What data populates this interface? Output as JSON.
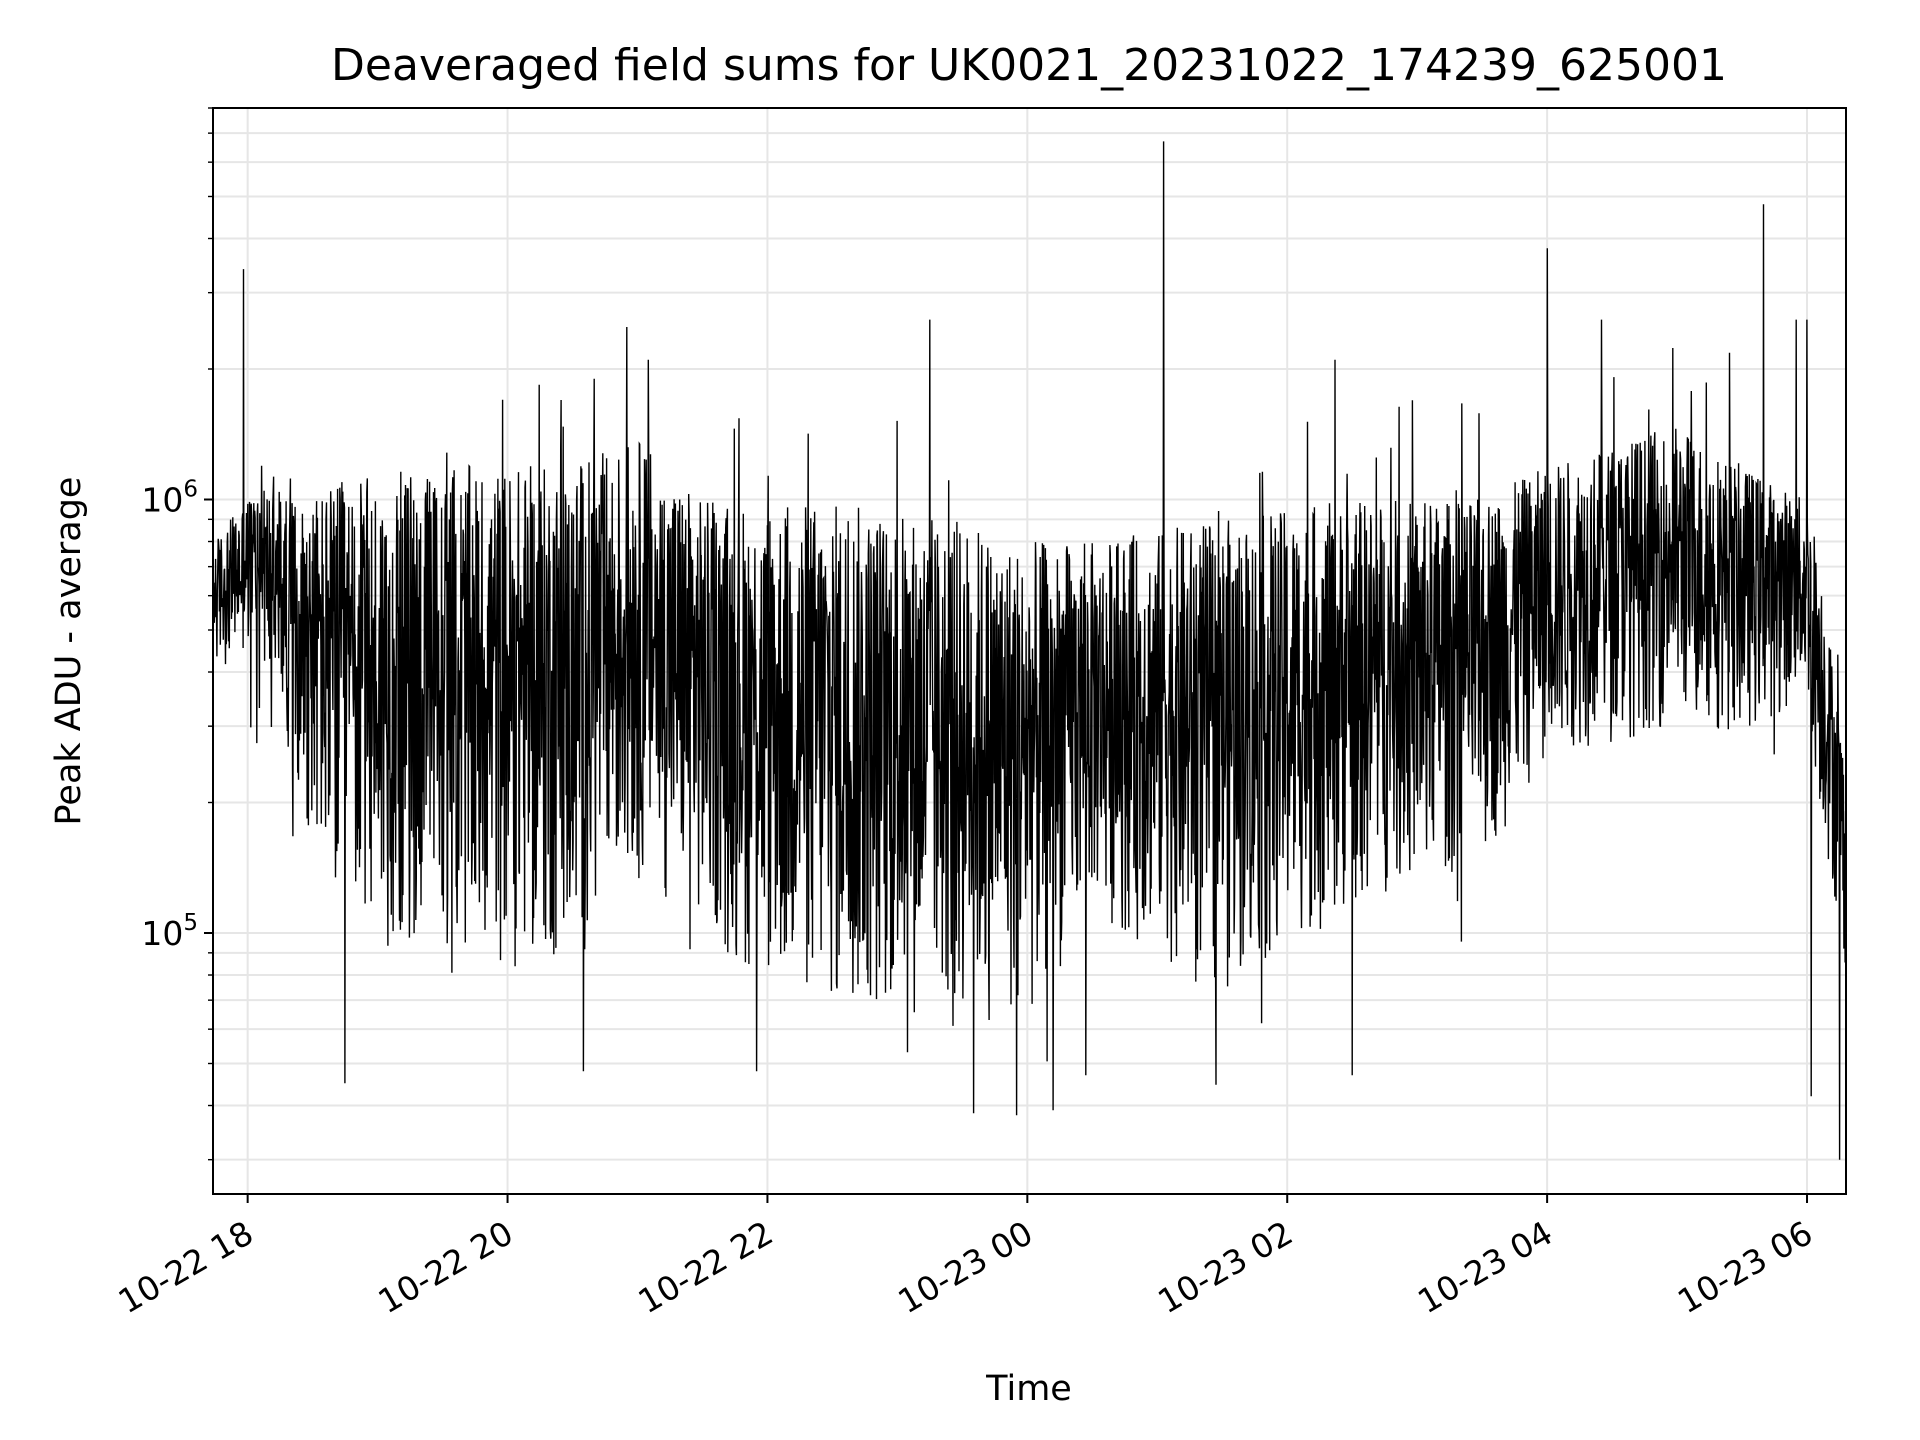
{
  "chart_data": {
    "type": "line",
    "title": "Deaveraged field sums for UK0021_20231022_174239_625001",
    "xlabel": "Time",
    "ylabel": "Peak ADU - average",
    "yscale": "log",
    "grid": true,
    "line_color": "#000000",
    "grid_color": "#e6e6e6",
    "xlim": [
      "2023-10-22 17:44",
      "2023-10-23 06:18"
    ],
    "ylim": [
      25000,
      8000000
    ],
    "x_ticks": [
      {
        "value": "2023-10-22 18:00",
        "label": "10-22 18"
      },
      {
        "value": "2023-10-22 20:00",
        "label": "10-22 20"
      },
      {
        "value": "2023-10-22 22:00",
        "label": "10-22 22"
      },
      {
        "value": "2023-10-23 00:00",
        "label": "10-23 00"
      },
      {
        "value": "2023-10-23 02:00",
        "label": "10-23 02"
      },
      {
        "value": "2023-10-23 04:00",
        "label": "10-23 04"
      },
      {
        "value": "2023-10-23 06:00",
        "label": "10-23 06"
      }
    ],
    "y_ticks": [
      {
        "value": 100000,
        "base": "10",
        "exp": "5"
      },
      {
        "value": 1000000,
        "base": "10",
        "exp": "6"
      }
    ],
    "series": [
      {
        "x_start": "2023-10-22 17:44",
        "x_end": "2023-10-23 06:18",
        "envelope": [
          {
            "t": "2023-10-22 17:44",
            "lo": 400000,
            "hi": 800000
          },
          {
            "t": "2023-10-22 18:05",
            "lo": 450000,
            "hi": 1100000
          },
          {
            "t": "2023-10-22 18:20",
            "lo": 250000,
            "hi": 1000000
          },
          {
            "t": "2023-10-22 18:40",
            "lo": 100000,
            "hi": 1100000
          },
          {
            "t": "2023-10-22 19:30",
            "lo": 80000,
            "hi": 1200000
          },
          {
            "t": "2023-10-22 20:30",
            "lo": 80000,
            "hi": 1200000
          },
          {
            "t": "2023-10-22 21:00",
            "lo": 130000,
            "hi": 1400000
          },
          {
            "t": "2023-10-22 21:30",
            "lo": 100000,
            "hi": 1000000
          },
          {
            "t": "2023-10-22 22:00",
            "lo": 70000,
            "hi": 1000000
          },
          {
            "t": "2023-10-22 22:30",
            "lo": 60000,
            "hi": 1000000
          },
          {
            "t": "2023-10-22 23:30",
            "lo": 60000,
            "hi": 900000
          },
          {
            "t": "2023-10-23 00:00",
            "lo": 60000,
            "hi": 800000
          },
          {
            "t": "2023-10-23 00:30",
            "lo": 110000,
            "hi": 800000
          },
          {
            "t": "2023-10-23 01:30",
            "lo": 70000,
            "hi": 900000
          },
          {
            "t": "2023-10-23 02:30",
            "lo": 110000,
            "hi": 1000000
          },
          {
            "t": "2023-10-23 03:30",
            "lo": 140000,
            "hi": 1000000
          },
          {
            "t": "2023-10-23 04:00",
            "lo": 250000,
            "hi": 1200000
          },
          {
            "t": "2023-10-23 05:00",
            "lo": 300000,
            "hi": 1500000
          },
          {
            "t": "2023-10-23 05:30",
            "lo": 280000,
            "hi": 1200000
          },
          {
            "t": "2023-10-23 06:00",
            "lo": 350000,
            "hi": 1000000
          },
          {
            "t": "2023-10-23 06:05",
            "lo": 200000,
            "hi": 800000
          },
          {
            "t": "2023-10-23 06:18",
            "lo": 80000,
            "hi": 250000
          }
        ],
        "spikes_high": [
          {
            "t": "2023-10-22 17:58",
            "y": 3400000
          },
          {
            "t": "2023-10-22 20:40",
            "y": 1900000
          },
          {
            "t": "2023-10-22 20:55",
            "y": 2500000
          },
          {
            "t": "2023-10-22 21:05",
            "y": 2100000
          },
          {
            "t": "2023-10-22 23:15",
            "y": 2600000
          },
          {
            "t": "2023-10-23 01:03",
            "y": 6700000
          },
          {
            "t": "2023-10-23 02:22",
            "y": 2100000
          },
          {
            "t": "2023-10-23 04:00",
            "y": 3800000
          },
          {
            "t": "2023-10-23 04:25",
            "y": 2600000
          },
          {
            "t": "2023-10-23 05:40",
            "y": 4800000
          },
          {
            "t": "2023-10-23 05:55",
            "y": 2600000
          },
          {
            "t": "2023-10-23 06:00",
            "y": 2600000
          }
        ],
        "spikes_low": [
          {
            "t": "2023-10-22 18:45",
            "y": 45000
          },
          {
            "t": "2023-10-22 20:35",
            "y": 48000
          },
          {
            "t": "2023-10-22 21:55",
            "y": 48000
          },
          {
            "t": "2023-10-22 23:55",
            "y": 38000
          },
          {
            "t": "2023-10-23 00:12",
            "y": 39000
          },
          {
            "t": "2023-10-23 00:27",
            "y": 47000
          },
          {
            "t": "2023-10-23 02:30",
            "y": 47000
          },
          {
            "t": "2023-10-23 06:02",
            "y": 42000
          },
          {
            "t": "2023-10-23 06:15",
            "y": 30000
          }
        ]
      }
    ]
  }
}
